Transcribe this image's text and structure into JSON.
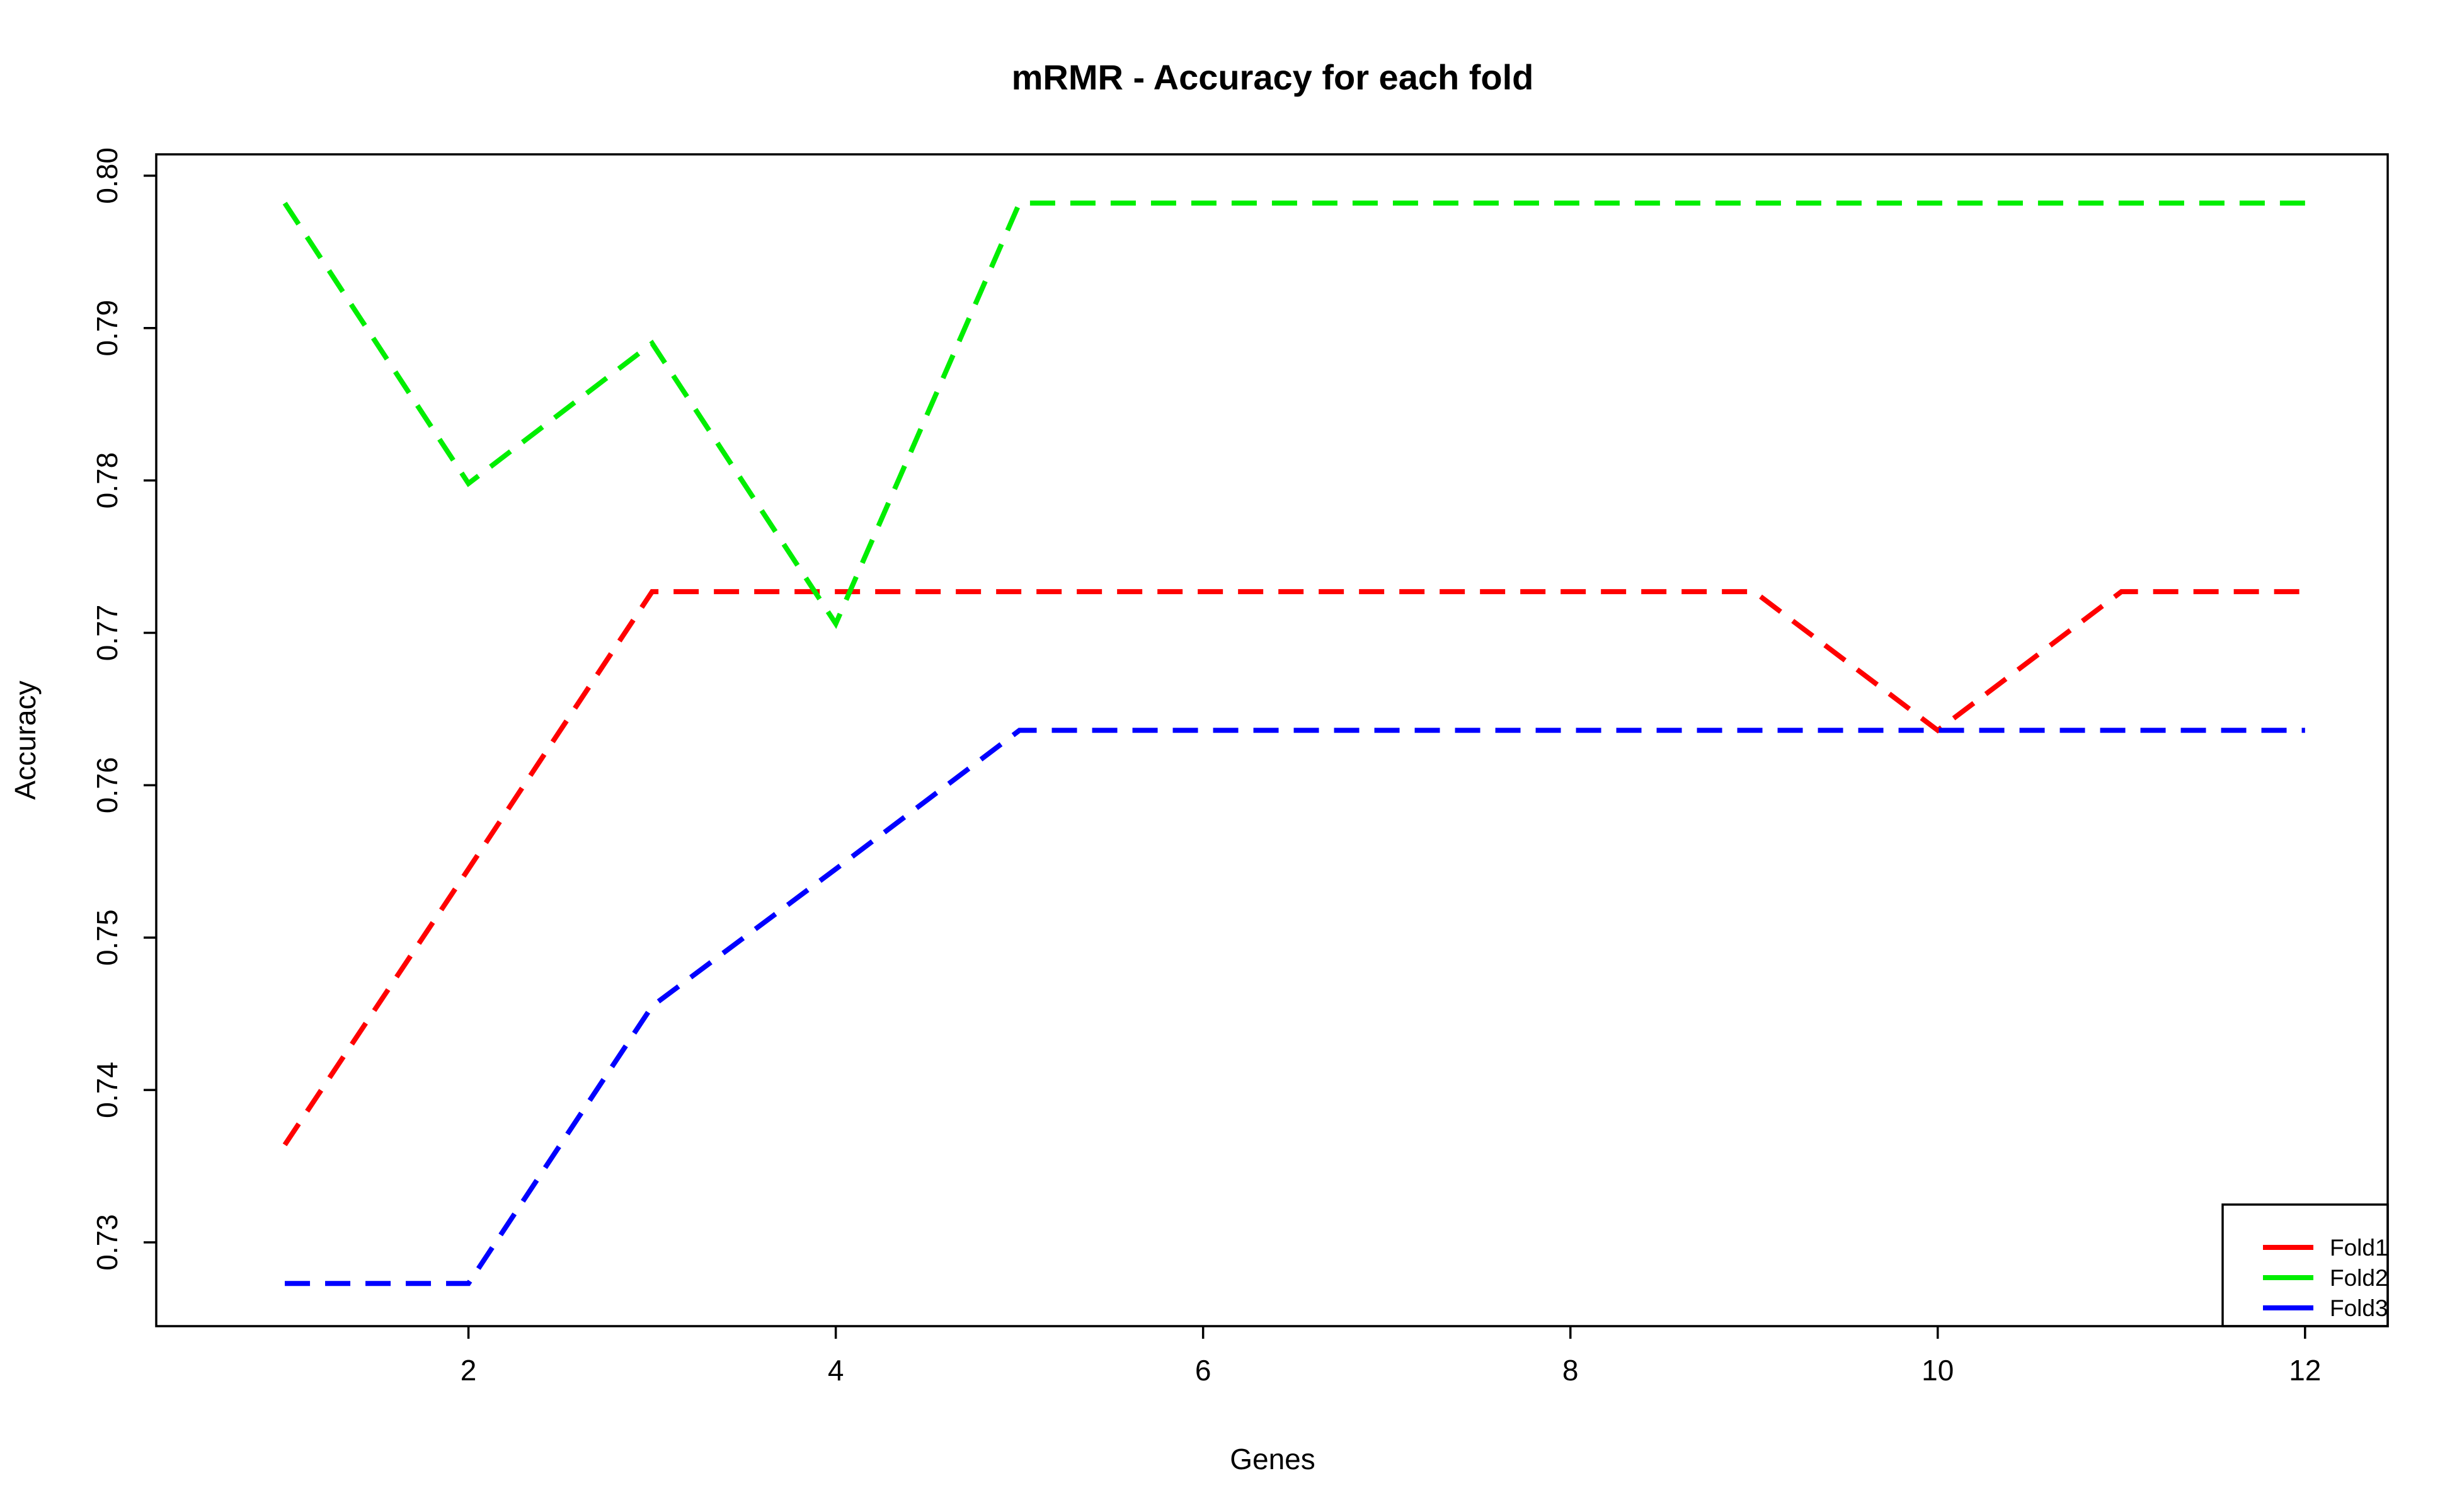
{
  "chart_data": {
    "type": "line",
    "title": "mRMR - Accuracy for each fold",
    "xlabel": "Genes",
    "ylabel": "Accuracy",
    "x": [
      1,
      2,
      3,
      4,
      5,
      6,
      7,
      8,
      9,
      10,
      11,
      12
    ],
    "xlim": [
      0.3,
      12.45
    ],
    "ylim": [
      0.7245,
      0.8014
    ],
    "xticks": [
      2,
      4,
      6,
      8,
      10,
      12
    ],
    "yticks": [
      0.73,
      0.74,
      0.75,
      0.76,
      0.77,
      0.78,
      0.79,
      0.8
    ],
    "ytick_labels": [
      "0.73",
      "0.74",
      "0.75",
      "0.76",
      "0.77",
      "0.78",
      "0.79",
      "0.80"
    ],
    "grid": false,
    "legend_position": "bottom-right",
    "series": [
      {
        "name": "Fold1",
        "color": "#ff0000",
        "values": [
          0.7364,
          0.7545,
          0.7727,
          0.7727,
          0.7727,
          0.7727,
          0.7727,
          0.7727,
          0.7727,
          0.7636,
          0.7727,
          0.7727
        ]
      },
      {
        "name": "Fold2",
        "color": "#00ee00",
        "values": [
          0.7982,
          0.7798,
          0.789,
          0.7706,
          0.7982,
          0.7982,
          0.7982,
          0.7982,
          0.7982,
          0.7982,
          0.7982,
          0.7982
        ]
      },
      {
        "name": "Fold3",
        "color": "#0000ff",
        "values": [
          0.7273,
          0.7273,
          0.7455,
          0.7545,
          0.7636,
          0.7636,
          0.7636,
          0.7636,
          0.7636,
          0.7636,
          0.7636,
          0.7636
        ]
      }
    ]
  }
}
